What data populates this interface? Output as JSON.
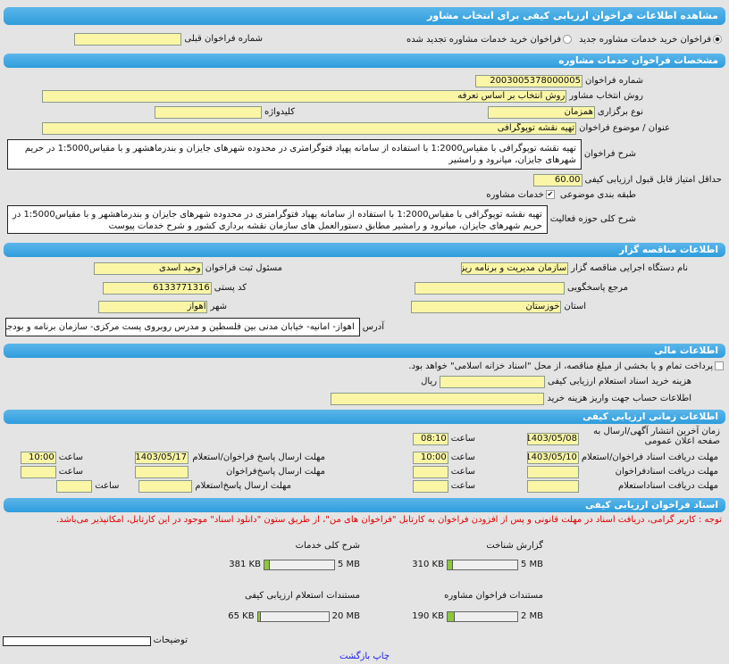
{
  "title": "مشاهده اطلاعات فراخوان ارزیابی کیفی برای انتخاب مشاور",
  "radios": [
    {
      "label": "فراخوان خرید خدمات مشاوره جدید",
      "selected": true
    },
    {
      "label": "فراخوان خرید خدمات مشاوره تجدید شده",
      "selected": false
    }
  ],
  "prev_number": {
    "label": "شماره فراخوان قبلی",
    "value": ""
  },
  "specs": {
    "header": "مشخصات فراخوان خدمات مشاوره",
    "number_label": "شماره فراخوان",
    "number": "2003005378000005",
    "method_label": "روش انتخاب مشاور",
    "method": "روش انتخاب بر اساس تعرفه",
    "type_label": "نوع برگزاری",
    "type": "همزمان",
    "keyword_label": "کلیدواژه",
    "keyword": "",
    "subject_label": "عنوان / موضوع فراخوان",
    "subject": "تهیه نقشه توپوگرافی",
    "desc_label": "شرح فراخوان",
    "desc": "تهیه نقشه توپوگرافی با مقیاس1:2000 با استفاده از سامانه پهپاد فتوگرامتری در محدوده شهرهای جایزان و بندرماهشهر و با مقیاس1:5000 در حریم شهرهای جایزان، میانرود و رامشیر",
    "min_score_label": "حداقل امتیاز قابل قبول ارزیابی کیفی",
    "min_score": "60.00",
    "category_label": "طبقه بندی موضوعی",
    "category": "خدمات مشاوره",
    "category_checked": true,
    "scope_label": "شرح کلی حوزه فعالیت",
    "scope": "تهیه نقشه توپوگرافی با مقیاس1:2000 با استفاده از سامانه پهپاد فتوگرامتری در محدوده شهرهای جایزان و بندرماهشهر و با مقیاس1:5000 در حریم شهرهای جایزان، میانرود و رامشیر مطابق دستورالعمل های سازمان نقشه برداری کشور و شرح خدمات پیوست"
  },
  "tenderer": {
    "header": "اطلاعات مناقصه گزار",
    "org_label": "نام دستگاه اجرایی مناقصه گزار",
    "org": "سازمان مدیریت و برنامه ریزی",
    "registrar_label": "مسئول ثبت فراخوان",
    "registrar": "وحید اسدی",
    "ref_label": "مرجع پاسخگویی",
    "ref": "",
    "postal_label": "کد پستی",
    "postal": "6133771316",
    "province_label": "استان",
    "province": "خوزستان",
    "city_label": "شهر",
    "city": "اهواز",
    "address_label": "آدرس",
    "address": "اهواز- امانیه- خیابان مدنی بین فلسطین و مدرس روبروی پست مرکزی- سازمان برنامه و بودجه استان خوزستان"
  },
  "finance": {
    "header": "اطلاعات مالی",
    "treasury_label": "پرداخت تمام و یا بخشی از مبلغ مناقصه، از محل \"اسناد خزانه اسلامی\" خواهد بود.",
    "treasury_checked": false,
    "cost_label": "هزینه خرید اسناد استعلام ارزیابی کیفی",
    "cost": "",
    "currency": "ریال",
    "account_label": "اطلاعات حساب جهت واریز هزینه خرید",
    "account": ""
  },
  "timing": {
    "header": "اطلاعات زمانی ارزیابی کیفی",
    "time_label": "ساعت",
    "publish_label": "زمان آخرین انتشار آگهی/ارسال به صفحه اعلان عمومی",
    "publish_date": "1403/05/08",
    "publish_time": "08:10",
    "recv_label": "مهلت دریافت اسناد فراخوان/استعلام",
    "recv_date": "1403/05/10",
    "recv_time": "10:00",
    "send_label": "مهلت ارسال پاسخ فراخوان/استعلام",
    "send_date": "1403/05/17",
    "send_time": "10:00",
    "recv_call_label": "مهلت دریافت اسنادفراخوان",
    "send_call_label": "مهلت ارسال پاسخ‌فراخوان",
    "recv_inq_label": "مهلت دریافت اسناداستعلام",
    "send_inq_label": "مهلت ارسال پاسخ‌استعلام"
  },
  "docs": {
    "header": "اسناد فراخوان ارزیابی کیفی",
    "note": "توجه : کاربر گرامی، دریافت اسناد در مهلت قانونی و پس از افزودن فراخوان به کارتابل \"فراخوان های من\"، از طریق ستون \"دانلود اسناد\" موجود در این کارتابل، امکانپذیر می‌باشد.",
    "files": [
      {
        "name": "گزارش شناخت",
        "size": "310 KB",
        "max": "5 MB",
        "fill_percent": 6
      },
      {
        "name": "شرح کلی خدمات",
        "size": "381 KB",
        "max": "5 MB",
        "fill_percent": 7
      },
      {
        "name": "مستندات فراخوان مشاوره",
        "size": "190 KB",
        "max": "2 MB",
        "fill_percent": 9
      },
      {
        "name": "مستندات استعلام ارزیابی کیفی",
        "size": "65 KB",
        "max": "20 MB",
        "fill_percent": 1
      }
    ],
    "notes_label": "توضیحات",
    "notes": ""
  },
  "footer": {
    "print": "چاپ",
    "back": "بازگشت"
  },
  "colors": {
    "header": "#3aa3e0",
    "input": "#faf6a6",
    "note": "#e00000",
    "progress": "#8cc63f"
  }
}
